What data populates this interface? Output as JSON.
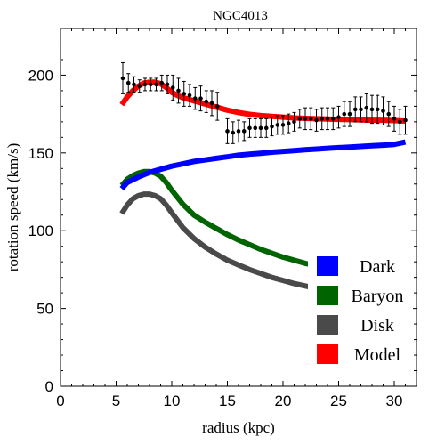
{
  "chart_data": {
    "type": "line",
    "title": "NGC4013",
    "xlabel": "radius (kpc)",
    "ylabel": "rotation speed (km/s)",
    "xlim": [
      0,
      32
    ],
    "ylim": [
      0,
      230
    ],
    "xticks": [
      0,
      5,
      10,
      15,
      20,
      25,
      30
    ],
    "yticks": [
      0,
      50,
      100,
      150,
      200
    ],
    "grid": false,
    "legend_position": "bottom-right",
    "series": [
      {
        "name": "Dark",
        "color": "#0000ff",
        "x": [
          5.5,
          6,
          7,
          8,
          9,
          10,
          11,
          12,
          13,
          14,
          15,
          16,
          17,
          18,
          19,
          20,
          21,
          22,
          23,
          24,
          25,
          26,
          27,
          28,
          29,
          30,
          31
        ],
        "y": [
          127,
          131,
          134.5,
          137.5,
          139.5,
          141.5,
          143,
          144.5,
          145.5,
          146.5,
          147.5,
          148.5,
          149.2,
          149.8,
          150.5,
          151,
          151.5,
          152,
          152.5,
          153,
          153.4,
          153.8,
          154.2,
          154.6,
          155,
          155.5,
          157
        ]
      },
      {
        "name": "Baryon",
        "color": "#006400",
        "x": [
          5.5,
          6,
          6.5,
          7,
          7.5,
          8,
          8.5,
          9,
          9.5,
          10,
          11,
          12,
          13,
          14,
          15,
          16,
          17,
          18,
          19,
          20,
          21,
          22,
          23,
          24,
          25,
          26,
          27,
          28,
          29,
          30,
          31
        ],
        "y": [
          129,
          133,
          135.5,
          137,
          138,
          138,
          137,
          135,
          131,
          126,
          117,
          110,
          105.5,
          101.5,
          97.5,
          94,
          91,
          88,
          85.5,
          83,
          81,
          79,
          77.5,
          76,
          74.5,
          73,
          72,
          71,
          70,
          69,
          68.5
        ]
      },
      {
        "name": "Disk",
        "color": "#4a4a4a",
        "x": [
          5.5,
          6,
          6.5,
          7,
          7.5,
          8,
          8.5,
          9,
          9.5,
          10,
          11,
          12,
          13,
          14,
          15,
          16,
          17,
          18,
          19,
          20,
          21,
          22,
          23,
          24,
          25,
          26,
          27,
          28,
          29,
          30,
          31
        ],
        "y": [
          111,
          116.5,
          120.5,
          122.5,
          123.5,
          123.5,
          122.5,
          120.5,
          116.5,
          111.5,
          102,
          95,
          89.5,
          85,
          81,
          78,
          75,
          72.5,
          70,
          68,
          66,
          64.5,
          63,
          61.5,
          60.5,
          59.5,
          58.5,
          57.5,
          56.5,
          56,
          55.5
        ]
      },
      {
        "name": "Model",
        "color": "#ff0000",
        "x": [
          5.5,
          6,
          6.5,
          7,
          7.5,
          8,
          8.5,
          9,
          9.5,
          10,
          10.5,
          11,
          12,
          13,
          14,
          15,
          16,
          17,
          18,
          19,
          20,
          21,
          22,
          23,
          24,
          25,
          26,
          27,
          28,
          29,
          30,
          31
        ],
        "y": [
          181,
          186,
          190,
          193,
          195,
          195.5,
          195.5,
          194.5,
          192,
          189,
          187,
          185.5,
          183.5,
          181.5,
          179.5,
          177.5,
          176,
          174.8,
          174,
          173.5,
          173,
          172.5,
          172.2,
          172,
          171.8,
          171.6,
          171.4,
          171.2,
          171,
          171,
          170.8,
          170.5
        ]
      }
    ],
    "observed": {
      "color": "#000000",
      "x": [
        5.6,
        6.1,
        6.6,
        7.1,
        7.6,
        8.1,
        8.6,
        9.1,
        9.6,
        10.1,
        10.6,
        11.1,
        11.6,
        12.1,
        12.6,
        13.1,
        13.6,
        14.1,
        15.0,
        15.5,
        16.0,
        16.5,
        17.0,
        17.5,
        18.0,
        18.5,
        19.0,
        19.5,
        20.0,
        20.5,
        21.0,
        21.5,
        22.0,
        22.5,
        23.0,
        23.5,
        24.0,
        24.5,
        25.0,
        25.5,
        26.0,
        26.5,
        27.0,
        27.5,
        28.0,
        28.5,
        29.0,
        29.5,
        30.0,
        30.5,
        31.0
      ],
      "y": [
        198,
        195,
        194,
        193,
        194,
        194,
        194,
        195,
        194,
        192,
        190,
        188,
        187,
        185,
        185,
        183,
        182,
        180,
        164,
        163,
        164,
        164,
        166,
        166,
        166,
        166,
        167,
        168,
        168,
        169,
        170,
        172,
        172,
        172,
        171,
        172,
        172,
        172,
        173,
        175,
        175,
        178,
        178,
        179,
        178,
        178,
        177,
        175,
        172,
        170,
        171
      ],
      "err": [
        10,
        6,
        5,
        4,
        4,
        4,
        4,
        5,
        6,
        8,
        8,
        8,
        7,
        7,
        8,
        7,
        8,
        9,
        8,
        7,
        7,
        6,
        6,
        6,
        6,
        6,
        6,
        6,
        6,
        6,
        6,
        6,
        7,
        7,
        7,
        7,
        7,
        7,
        7,
        8,
        8,
        8,
        8,
        9,
        9,
        9,
        9,
        8,
        8,
        8,
        9
      ]
    }
  }
}
